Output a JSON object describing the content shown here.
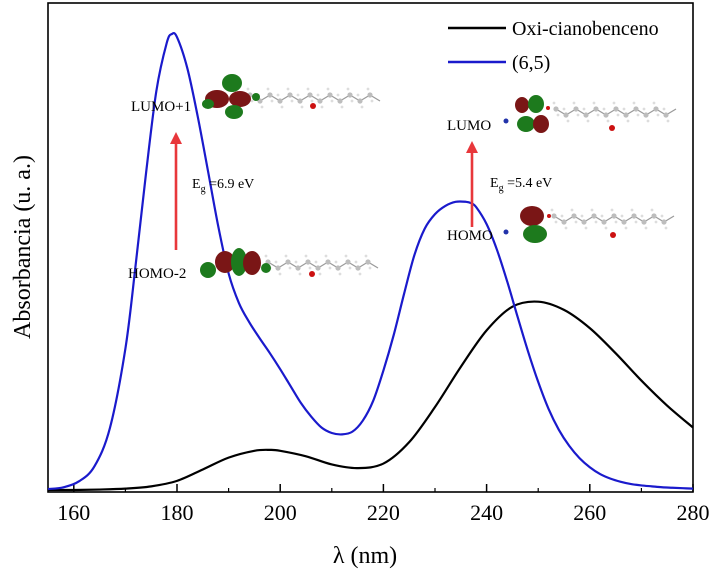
{
  "chart_data": {
    "type": "line",
    "title": "",
    "xlabel": "λ (nm)",
    "ylabel": "Absorbancia (u. a.)",
    "xlim": [
      155,
      280
    ],
    "ylim": [
      0,
      1.0
    ],
    "y_ticks_shown": false,
    "x_ticks": [
      160,
      180,
      200,
      220,
      240,
      260,
      280
    ],
    "grid": false,
    "legend_position": "top-right",
    "series": [
      {
        "name": "Oxi-cianobenceno",
        "color": "#000000",
        "x": [
          155,
          160,
          165,
          170,
          175,
          180,
          185,
          190,
          195,
          198,
          200,
          205,
          210,
          215,
          220,
          225,
          230,
          235,
          240,
          245,
          250,
          255,
          260,
          265,
          270,
          275,
          280
        ],
        "y": [
          0.0,
          0.0,
          0.001,
          0.003,
          0.008,
          0.02,
          0.045,
          0.071,
          0.086,
          0.088,
          0.086,
          0.074,
          0.056,
          0.048,
          0.058,
          0.105,
          0.182,
          0.27,
          0.35,
          0.402,
          0.413,
          0.395,
          0.355,
          0.3,
          0.24,
          0.185,
          0.137
        ]
      },
      {
        "name": "(6,5)",
        "color": "#1a1acc",
        "x": [
          155,
          158,
          161,
          164,
          167,
          170,
          172,
          174,
          176,
          178,
          179,
          180,
          182,
          184,
          186,
          188,
          190,
          192,
          194,
          196,
          198,
          200,
          202,
          204,
          206,
          208,
          210,
          212,
          214,
          216,
          218,
          220,
          222,
          224,
          226,
          228,
          230,
          232,
          234,
          236,
          237,
          238,
          240,
          242,
          244,
          246,
          248,
          250,
          252,
          254,
          256,
          258,
          260,
          262,
          264,
          266,
          268,
          270,
          272,
          274,
          276,
          278,
          280
        ],
        "y": [
          0.002,
          0.006,
          0.019,
          0.052,
          0.136,
          0.31,
          0.495,
          0.695,
          0.875,
          0.98,
          1.0,
          0.993,
          0.925,
          0.82,
          0.7,
          0.578,
          0.475,
          0.41,
          0.368,
          0.333,
          0.3,
          0.265,
          0.228,
          0.191,
          0.161,
          0.137,
          0.125,
          0.122,
          0.128,
          0.152,
          0.195,
          0.262,
          0.34,
          0.43,
          0.515,
          0.573,
          0.605,
          0.623,
          0.632,
          0.632,
          0.629,
          0.62,
          0.583,
          0.527,
          0.457,
          0.38,
          0.305,
          0.237,
          0.178,
          0.132,
          0.097,
          0.07,
          0.05,
          0.035,
          0.025,
          0.018,
          0.013,
          0.01,
          0.008,
          0.006,
          0.005,
          0.004,
          0.003
        ]
      }
    ],
    "annotations": {
      "left": {
        "upper_label": "LUMO+1",
        "lower_label": "HOMO-2",
        "gap_symbol": "E",
        "gap_subscript": "g",
        "gap_value": " =6.9 eV"
      },
      "right": {
        "upper_label": "LUMO",
        "lower_label": "HOMO",
        "gap_symbol": "E",
        "gap_subscript": "g",
        "gap_value": " =5.4 eV"
      }
    },
    "arrow_color": "#e8373b",
    "orbital_colors": {
      "lobe_dark": "#7a1616",
      "lobe_green": "#1d7a1d",
      "atom_grey": "#bdbdbd",
      "atom_red": "#cc1111",
      "atom_blue": "#2233aa"
    }
  }
}
